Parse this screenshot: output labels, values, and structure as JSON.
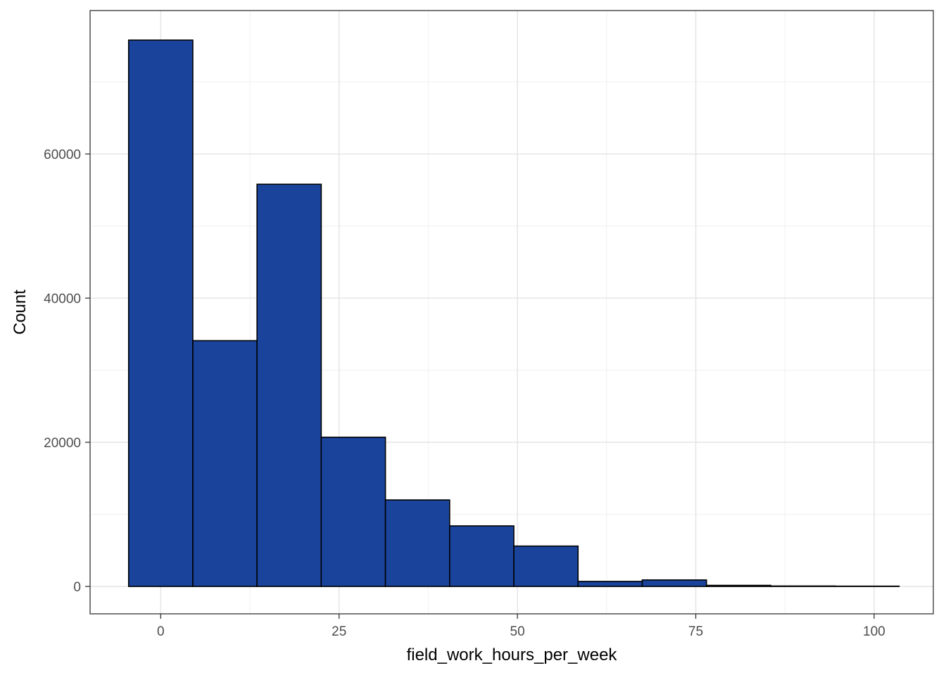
{
  "chart_data": {
    "type": "bar",
    "title": "",
    "xlabel": "field_work_hours_per_week",
    "ylabel": "Count",
    "bar_fill": "#1A449C",
    "bar_outline": "#000000",
    "grid": true,
    "xlim": [
      -9.9,
      108.3
    ],
    "ylim": [
      -3800,
      79900
    ],
    "x_ticks": [
      {
        "value": 0,
        "label": "0"
      },
      {
        "value": 25,
        "label": "25"
      },
      {
        "value": 50,
        "label": "50"
      },
      {
        "value": 75,
        "label": "75"
      },
      {
        "value": 100,
        "label": "100"
      }
    ],
    "y_ticks": [
      {
        "value": 0,
        "label": "0"
      },
      {
        "value": 20000,
        "label": "20000"
      },
      {
        "value": 40000,
        "label": "40000"
      },
      {
        "value": 60000,
        "label": "60000"
      }
    ],
    "bins": [
      {
        "x0": -4.5,
        "x1": 4.5,
        "count": 75800
      },
      {
        "x0": 4.5,
        "x1": 13.5,
        "count": 34100
      },
      {
        "x0": 13.5,
        "x1": 22.5,
        "count": 55800
      },
      {
        "x0": 22.5,
        "x1": 31.5,
        "count": 20700
      },
      {
        "x0": 31.5,
        "x1": 40.5,
        "count": 12000
      },
      {
        "x0": 40.5,
        "x1": 49.5,
        "count": 8400
      },
      {
        "x0": 49.5,
        "x1": 58.5,
        "count": 5600
      },
      {
        "x0": 58.5,
        "x1": 67.5,
        "count": 700
      },
      {
        "x0": 67.5,
        "x1": 76.5,
        "count": 900
      },
      {
        "x0": 76.5,
        "x1": 85.5,
        "count": 150
      },
      {
        "x0": 85.5,
        "x1": 94.5,
        "count": 60
      },
      {
        "x0": 94.5,
        "x1": 103.5,
        "count": 40
      }
    ]
  }
}
